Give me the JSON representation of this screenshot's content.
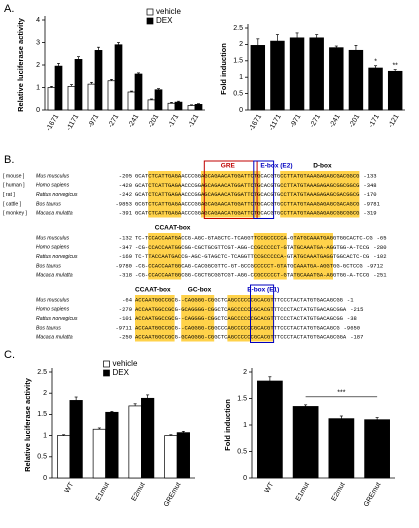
{
  "panel_labels": [
    "A.",
    "B.",
    "C."
  ],
  "chart_data": [
    {
      "type": "bar",
      "y_label": "Relative luciferase activity",
      "categories": [
        "-1671",
        "-1171",
        "-971",
        "-271",
        "-241",
        "-201",
        "-171",
        "-121"
      ],
      "series": [
        {
          "name": "vehicle",
          "color": "#ffffff",
          "values": [
            1.0,
            1.05,
            1.15,
            1.3,
            0.8,
            0.45,
            0.3,
            0.2
          ],
          "errors": [
            0.05,
            0.08,
            0.08,
            0.06,
            0.04,
            0.04,
            0.04,
            0.03
          ]
        },
        {
          "name": "DEX",
          "color": "#000000",
          "values": [
            1.95,
            2.25,
            2.65,
            2.9,
            1.6,
            0.9,
            0.35,
            0.25
          ],
          "errors": [
            0.12,
            0.12,
            0.14,
            0.1,
            0.05,
            0.05,
            0.04,
            0.03
          ]
        }
      ],
      "ylim": [
        0,
        4
      ],
      "yticks": [
        0,
        1,
        2,
        3,
        4
      ],
      "legend": "upper right"
    },
    {
      "type": "bar",
      "y_label": "Fold induction",
      "categories": [
        "-1671",
        "-1171",
        "-971",
        "-271",
        "-241",
        "-201",
        "-171",
        "-121"
      ],
      "values": [
        1.97,
        2.1,
        2.2,
        2.2,
        1.9,
        1.82,
        1.28,
        1.18
      ],
      "errors": [
        0.2,
        0.2,
        0.15,
        0.1,
        0.05,
        0.15,
        0.07,
        0.05
      ],
      "color": "#000000",
      "ylim": [
        0,
        2.5
      ],
      "yticks": [
        0,
        0.5,
        1,
        1.5,
        2,
        2.5
      ],
      "annotations": [
        {
          "text": "*",
          "category": "-171"
        },
        {
          "text": "**",
          "category": "-121"
        }
      ]
    },
    {
      "type": "bar",
      "y_label": "Relative luciferase activity",
      "categories": [
        "WT",
        "E1mut",
        "E2mut",
        "GREmut"
      ],
      "series": [
        {
          "name": "vehicle",
          "color": "#ffffff",
          "values": [
            1.0,
            1.15,
            1.7,
            1.0
          ],
          "errors": [
            0.02,
            0.03,
            0.05,
            0.02
          ]
        },
        {
          "name": "DEX",
          "color": "#000000",
          "values": [
            1.83,
            1.55,
            1.88,
            1.07
          ],
          "errors": [
            0.08,
            0.02,
            0.08,
            0.03
          ]
        }
      ],
      "ylim": [
        0,
        2.5
      ],
      "yticks": [
        0,
        0.5,
        1,
        1.5,
        2,
        2.5
      ],
      "legend": "upper center"
    },
    {
      "type": "bar",
      "y_label": "Fold induction",
      "categories": [
        "WT",
        "E1mut",
        "E2mut",
        "GREmut"
      ],
      "values": [
        1.83,
        1.35,
        1.12,
        1.1
      ],
      "errors": [
        0.08,
        0.03,
        0.05,
        0.04
      ],
      "color": "#000000",
      "ylim": [
        0,
        2
      ],
      "yticks": [
        0,
        0.5,
        1,
        1.5,
        2
      ],
      "annotations": [
        {
          "text": "***",
          "from": "E1mut",
          "to": "GREmut"
        }
      ]
    }
  ],
  "alignment": {
    "blocks": [
      {
        "motifs": [
          "GRE",
          "E-box (E2)",
          "D-box"
        ],
        "rows": [
          {
            "tag": "[ mouse ]",
            "species": "Mus musculus",
            "start": "-205",
            "seq": "GCATCTCATTGAGAACCCGGAGCAGAACATGGATTCTGCACGTGCCTTATGTAAAGAGAGCGACGGCG",
            "end": "-133"
          },
          {
            "tag": "[ human ]",
            "species": "Homo sapiens",
            "start": "-420",
            "seq": "GCATCTCATTGAGAACCCGGAGCAGAACATGGATTCTGCACGTGCCTTATGTAAAGAGAGCGGCGGCG",
            "end": "-348"
          },
          {
            "tag": "[ rat ]",
            "species": "Rattus norvegicus",
            "start": "-242",
            "seq": "GCATCTCATTGAGAACCCGGAGCAGAACATGGATTCTGCACGTGCCTTATGTAAAGAGAGCGACGGCG",
            "end": "-170"
          },
          {
            "tag": "[ cattle ]",
            "species": "Bos taurus",
            "start": "-9853",
            "seq": "GCGTCTCATTGAGAACCCGGAGCAGAACATGGATTCTGCACGTGCCTTATGTAAAGAGAGCGACAGCG",
            "end": "-9781"
          },
          {
            "tag": "[ monkey ]",
            "species": "Macaca mulatta",
            "start": "-391",
            "seq": "GCATCTCATTGAGAACCCGGAGCAGAACATGGATTCTGCACGTGCCTTATGTAAAGAGAGCGGCGGCG",
            "end": "-319"
          }
        ]
      },
      {
        "motifs": [
          "CCAAT-box"
        ],
        "rows": [
          {
            "species": "Mus musculus",
            "start": "-132",
            "seq": "TC-TCCACCAATGACCG-AGC-GTAGCTC-TCAGGTTCCGCCCCCA-GTATGCAAATGAGGTGGCACTC-CG",
            "end": "-65"
          },
          {
            "species": "Homo sapiens",
            "start": "-347",
            "seq": "-CG-CCACCAATGGCGG-CGCTGCGTTCGT-AGG-CCGCCCCCT-GTATGCAAATGA-AGGTGG-A-TCCG",
            "end": "-280"
          },
          {
            "species": "Rattus norvegicus",
            "start": "-169",
            "seq": "TC-TTACCAATGACCG-AGC-GTAGCTC-TCAGGTTCCGCCCCCA-GTATGCAAATGAGGTGGCACTC-CG",
            "end": "-102"
          },
          {
            "species": "Bos taurus",
            "start": "-9780",
            "seq": "-CG-CCACCAATGGCAG-CACGGCGTTC-GT-GCCGCCCCCT-GTATGCAAATGA-AGGTGG-GCTCCG",
            "end": "-9712"
          },
          {
            "species": "Macaca mulatta",
            "start": "-318",
            "seq": "-CG-CCACCAATGGCGG-CGCTGCGGTCGT-AGG-CCGCCCCCT-GTATGCAAATGA-AGGTGG-A-TCCG",
            "end": "-251"
          }
        ]
      },
      {
        "motifs": [
          "CCAAT-box",
          "GC-box",
          "E-box (E1)"
        ],
        "rows": [
          {
            "species": "Mus musculus",
            "start": "-64",
            "seq": "ACCAATGGCCGCG--CAGGGG-CGGCTCAGCCCCCCGCACGTTTCCCTACTATGTGACAGCGG",
            "end": "-1"
          },
          {
            "species": "Homo sapiens",
            "start": "-279",
            "seq": "ACCAATGGCCGCG-GCAGGGG-CGGCTCAGCCCCCCGCACGTTTCCCTACTATGTGACAGCGGA",
            "end": "-215"
          },
          {
            "species": "Rattus norvegicus",
            "start": "-101",
            "seq": "ACCAATGGCCGCG--CAGGGG-CGGCTCAGCCCCCCGCACGTTTCCCTACTATGTGACAGCGG",
            "end": "-38"
          },
          {
            "species": "Bos taurus",
            "start": "-9711",
            "seq": "ACCAATGGCCGCG--CAGGGG-CGGCCCAGCCCCCCGCACGTTTCCCTACTATGTGACAGCG",
            "end": "-9650"
          },
          {
            "species": "Macaca mulatta",
            "start": "-250",
            "seq": "ACCAATGGCCGCG-GCAGGGG-CGGCTCAGCCCCCCGCACGTTTCCCTACTATGTGACAGCGGA",
            "end": "-187"
          }
        ]
      }
    ]
  }
}
